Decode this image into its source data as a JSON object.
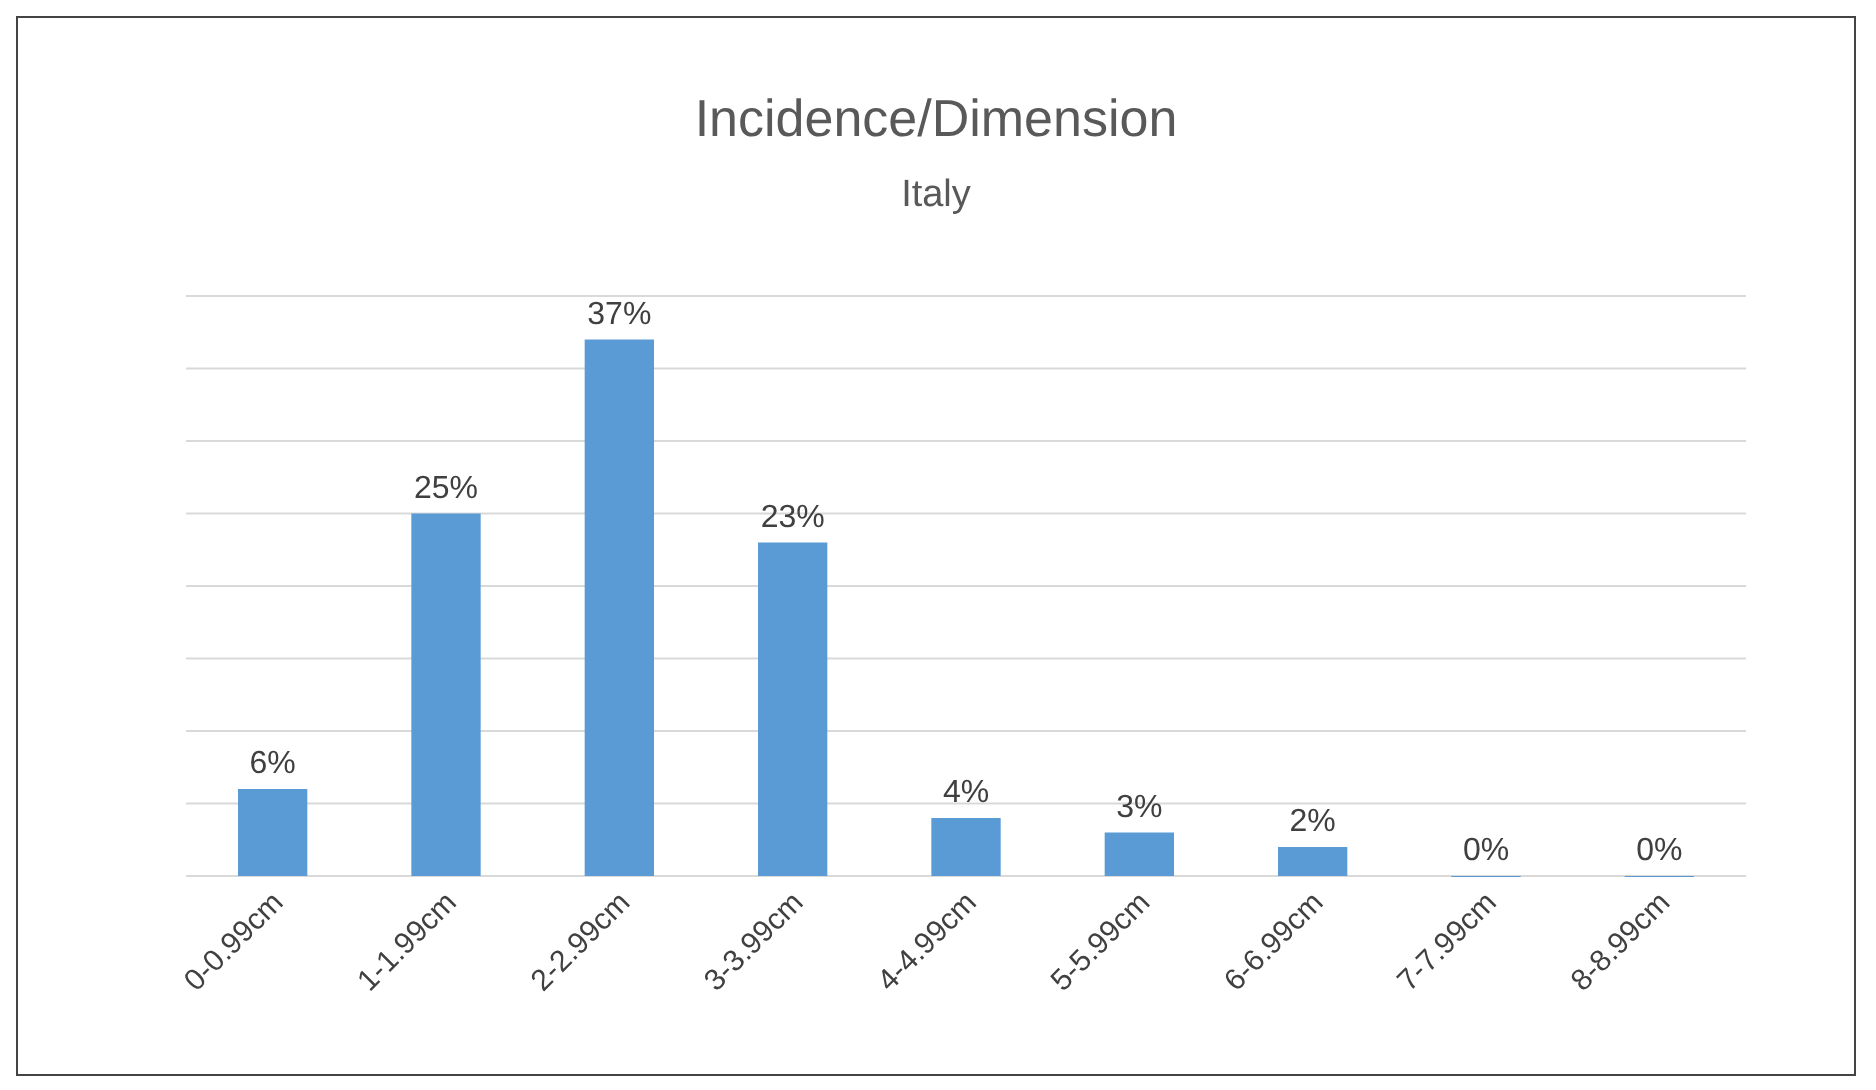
{
  "chart_data": {
    "type": "bar",
    "title": "Incidence/Dimension",
    "subtitle": "Italy",
    "categories": [
      "0-0.99cm",
      "1-1.99cm",
      "2-2.99cm",
      "3-3.99cm",
      "4-4.99cm",
      "5-5.99cm",
      "6-6.99cm",
      "7-7.99cm",
      "8-8.99cm"
    ],
    "values": [
      6,
      25,
      37,
      23,
      4,
      3,
      2,
      0,
      0
    ],
    "value_labels": [
      "6%",
      "25%",
      "37%",
      "23%",
      "4%",
      "3%",
      "2%",
      "0%",
      "0%"
    ],
    "color": "#5b9bd5",
    "ylim": [
      0,
      40
    ],
    "yticks": [
      {
        "value": 0,
        "label": null
      },
      {
        "value": 5,
        "label": null
      },
      {
        "value": 10,
        "label": null
      },
      {
        "value": 15,
        "label": null
      },
      {
        "value": 20,
        "label": null
      },
      {
        "value": 25,
        "label": null
      },
      {
        "value": 30,
        "label": null
      },
      {
        "value": 35,
        "label": null
      },
      {
        "value": 40,
        "label": null
      }
    ],
    "tick_labels": "x",
    "grid": "y"
  }
}
